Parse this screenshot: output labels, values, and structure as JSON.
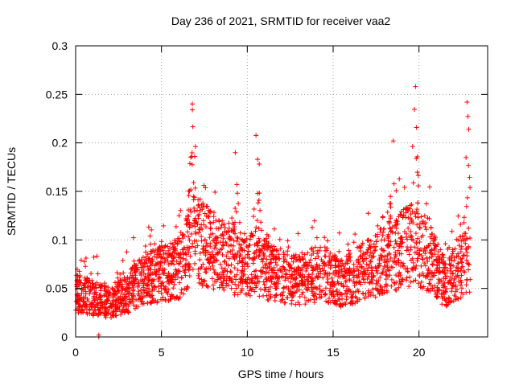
{
  "chart_data": {
    "type": "scatter",
    "title": "Day 236 of 2021, SRMTID for receiver vaa2",
    "xlabel": "GPS time / hours",
    "ylabel": "SRMTID / TECUs",
    "xlim": [
      0,
      24
    ],
    "ylim": [
      0,
      0.3
    ],
    "xticks": [
      0,
      5,
      10,
      15,
      20
    ],
    "xtick_labels": [
      "0",
      "5",
      "10",
      "15",
      "20"
    ],
    "yticks": [
      0,
      0.05,
      0.1,
      0.15,
      0.2,
      0.25,
      0.3
    ],
    "ytick_labels": [
      "0",
      "0.05",
      "0.1",
      "0.15",
      "0.2",
      "0.25",
      "0.3"
    ],
    "grid": true,
    "marker": "+",
    "color": "#ff0000",
    "series_envelope": {
      "name": "SRMTID",
      "x_range": [
        0,
        23
      ],
      "baseline": [
        [
          0,
          0.045
        ],
        [
          1,
          0.04
        ],
        [
          2,
          0.035
        ],
        [
          3,
          0.045
        ],
        [
          4,
          0.06
        ],
        [
          5,
          0.065
        ],
        [
          6,
          0.07
        ],
        [
          6.8,
          0.1
        ],
        [
          7.5,
          0.095
        ],
        [
          8.5,
          0.085
        ],
        [
          9.5,
          0.075
        ],
        [
          10.5,
          0.075
        ],
        [
          11.5,
          0.065
        ],
        [
          12.5,
          0.06
        ],
        [
          13.5,
          0.06
        ],
        [
          14.5,
          0.065
        ],
        [
          15.5,
          0.055
        ],
        [
          16.5,
          0.065
        ],
        [
          17.5,
          0.075
        ],
        [
          18.5,
          0.085
        ],
        [
          19.5,
          0.095
        ],
        [
          20.5,
          0.085
        ],
        [
          21.5,
          0.055
        ],
        [
          22.3,
          0.07
        ],
        [
          23,
          0.085
        ]
      ]
    },
    "peaks": [
      {
        "x": 6.8,
        "y": 0.234
      },
      {
        "x": 9.3,
        "y": 0.19
      },
      {
        "x": 10.6,
        "y": 0.183
      },
      {
        "x": 18.5,
        "y": 0.202
      },
      {
        "x": 19.8,
        "y": 0.258
      },
      {
        "x": 22.8,
        "y": 0.242
      },
      {
        "x": 22.9,
        "y": 0.214
      }
    ]
  }
}
